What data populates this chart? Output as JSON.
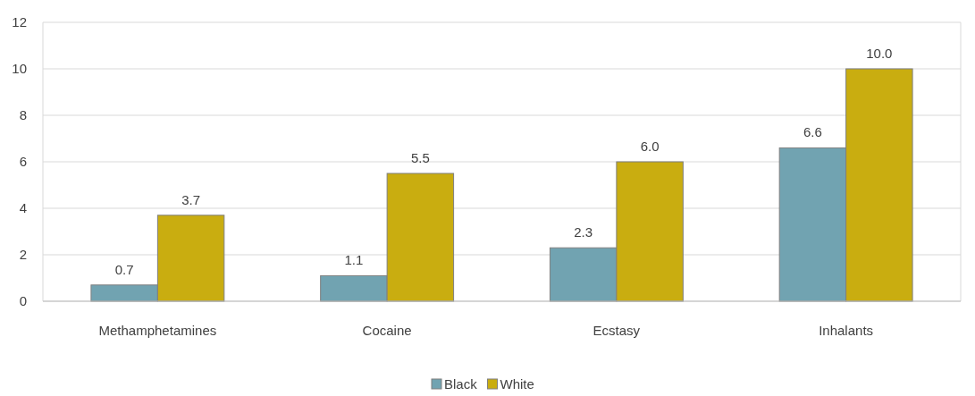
{
  "chart_data": {
    "type": "bar",
    "categories": [
      "Methamphetamines",
      "Cocaine",
      "Ecstasy",
      "Inhalants"
    ],
    "series": [
      {
        "name": "Black",
        "color": "#71a3b1",
        "values": [
          0.7,
          1.1,
          2.3,
          6.6
        ],
        "value_labels": [
          "0.7",
          "1.1",
          "2.3",
          "6.6"
        ]
      },
      {
        "name": "White",
        "color": "#c9ad10",
        "values": [
          3.7,
          5.5,
          6.0,
          10.0
        ],
        "value_labels": [
          "3.7",
          "5.5",
          "6.0",
          "10.0"
        ]
      }
    ],
    "ylim": [
      0,
      12
    ],
    "yticks": [
      0,
      2,
      4,
      6,
      8,
      10,
      12
    ],
    "grid": "y",
    "legend": "bottom"
  }
}
